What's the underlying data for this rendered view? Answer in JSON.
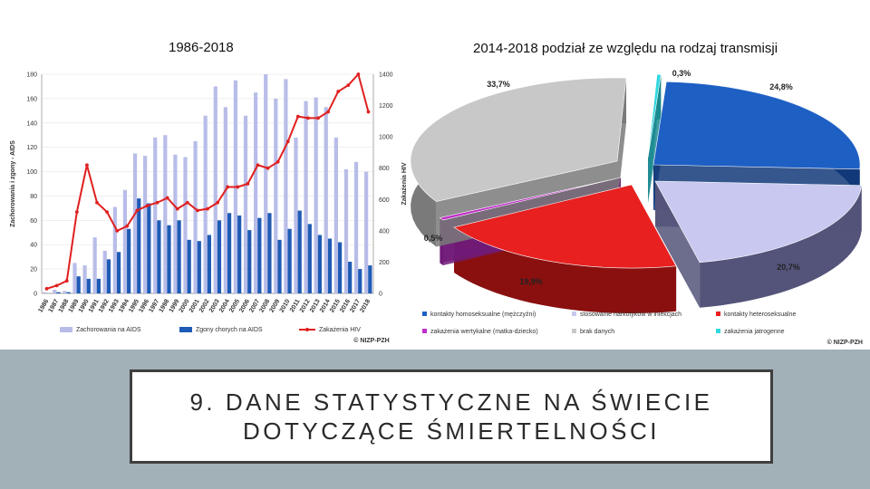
{
  "slide": {
    "left_title": "1986-2018",
    "right_title": "2014-2018 podział ze względu na rodzaj transmisji",
    "bottom_text": "9. DANE STATYSTYCZNE NA ŚWIECIE DOTYCZĄCE ŚMIERTELNOŚCI"
  },
  "colors": {
    "aids_cases": "#b8bde8",
    "aids_deaths": "#1f5bb5",
    "hiv": "#e02020",
    "pie_homo": "#1e5fc4",
    "pie_drug": "#c8c8f0",
    "pie_hetero": "#e82020",
    "pie_vertical": "#c030c8",
    "pie_unknown": "#c8c8c8",
    "pie_iatrogenic": "#30d8e0",
    "band": "#a2b0b8"
  },
  "chart_data": [
    {
      "type": "bar",
      "title": "1986-2018",
      "categories": [
        "1986",
        "1987",
        "1988",
        "1989",
        "1990",
        "1991",
        "1992",
        "1993",
        "1994",
        "1995",
        "1996",
        "1997",
        "1998",
        "1999",
        "2000",
        "2001",
        "2002",
        "2003",
        "2004",
        "2005",
        "2006",
        "2007",
        "2008",
        "2009",
        "2010",
        "2011",
        "2012",
        "2013",
        "2014",
        "2015",
        "2016",
        "2017",
        "2018"
      ],
      "ylabel": "Zachorowania i zgony - AIDS",
      "y2label": "Zakażenia HIV",
      "ylim": [
        0,
        180
      ],
      "y2lim": [
        0,
        1400
      ],
      "yticks": [
        "0",
        "20",
        "40",
        "60",
        "80",
        "100",
        "120",
        "140",
        "160",
        "180"
      ],
      "y2ticks": [
        "0",
        "200",
        "400",
        "600",
        "800",
        "1000",
        "1200",
        "1400"
      ],
      "series": [
        {
          "name": "Zachorowania na AIDS",
          "kind": "bar",
          "axis": "left",
          "values": [
            1,
            3,
            2,
            25,
            23,
            46,
            35,
            71,
            85,
            115,
            113,
            128,
            130,
            114,
            112,
            125,
            146,
            170,
            153,
            175,
            146,
            165,
            180,
            160,
            176,
            128,
            158,
            161,
            153,
            128,
            102,
            108,
            100
          ]
        },
        {
          "name": "Zgony chorych na AIDS",
          "kind": "bar",
          "axis": "left",
          "values": [
            0,
            1,
            1,
            14,
            12,
            12,
            28,
            34,
            53,
            78,
            74,
            60,
            56,
            60,
            44,
            43,
            48,
            60,
            66,
            64,
            52,
            62,
            66,
            44,
            53,
            68,
            57,
            48,
            45,
            42,
            26,
            20,
            23
          ]
        },
        {
          "name": "Zakażenia HIV",
          "kind": "line",
          "axis": "right",
          "values": [
            30,
            50,
            80,
            520,
            820,
            580,
            520,
            400,
            430,
            530,
            560,
            580,
            610,
            540,
            580,
            530,
            540,
            580,
            680,
            680,
            700,
            820,
            800,
            840,
            970,
            1130,
            1120,
            1120,
            1160,
            1290,
            1330,
            1400,
            1160
          ]
        }
      ],
      "watermark": "© NIZP-PZH"
    },
    {
      "type": "pie",
      "title": "2014-2018 podział ze względu na rodzaj transmisji",
      "slices": [
        {
          "label": "kontakty homoseksualne (mężczyźni)",
          "value": 24.8,
          "display": "24,8%"
        },
        {
          "label": "stosowanie narkotyków w iniekcjach",
          "value": 20.7,
          "display": "20,7%"
        },
        {
          "label": "kontakty heteroseksualne",
          "value": 19.9,
          "display": "19,9%"
        },
        {
          "label": "zakażenia wertykalne (matka-dziecko)",
          "value": 0.5,
          "display": "0,5%"
        },
        {
          "label": "brak danych",
          "value": 33.7,
          "display": "33,7%"
        },
        {
          "label": "zakażenia jatrogenne",
          "value": 0.3,
          "display": "0,3%"
        }
      ],
      "watermark": "© NIZP-PZH"
    }
  ]
}
